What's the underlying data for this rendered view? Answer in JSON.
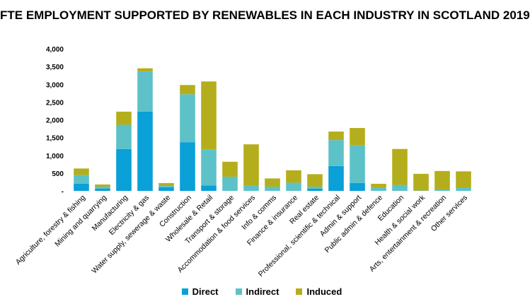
{
  "chart_data": {
    "type": "bar",
    "stacked": true,
    "title": "FTE EMPLOYMENT SUPPORTED BY RENEWABLES IN EACH INDUSTRY IN SCOTLAND 2019",
    "xlabel": "",
    "ylabel": "",
    "ylim": [
      0,
      4000
    ],
    "yticks": [
      0,
      500,
      1000,
      1500,
      2000,
      2500,
      3000,
      3500,
      4000
    ],
    "ytick_labels": [
      "-",
      "500",
      "1,000",
      "1,500",
      "2,000",
      "2,500",
      "3,000",
      "3,500",
      "4,000"
    ],
    "grid": false,
    "legend_position": "bottom",
    "categories": [
      "Agriculture, forestry & fishing",
      "Mining and quarrying",
      "Manufacturing",
      "Electricity & gas",
      "Water supply, sewerage & waste",
      "Construction",
      "Wholesale & Retail",
      "Transport & storage",
      "Accommodation & food services",
      "Info & comms",
      "Finance & insurance",
      "Real estate",
      "Professional, scientific & technical",
      "Admin & support",
      "Public admin & defence",
      "Education",
      "Health & social work",
      "Arts, entertainment & recreation",
      "Other services"
    ],
    "series": [
      {
        "name": "Direct",
        "color": "#0aa0d8",
        "values": [
          200,
          60,
          1180,
          2230,
          100,
          1370,
          150,
          0,
          0,
          0,
          0,
          60,
          700,
          220,
          0,
          0,
          0,
          0,
          0
        ]
      },
      {
        "name": "Indirect",
        "color": "#5cc2c8",
        "values": [
          250,
          60,
          680,
          1130,
          40,
          1350,
          1020,
          400,
          150,
          120,
          230,
          60,
          730,
          1060,
          100,
          170,
          10,
          40,
          90
        ]
      },
      {
        "name": "Induced",
        "color": "#b5ae1c",
        "values": [
          180,
          60,
          370,
          90,
          80,
          260,
          1910,
          420,
          1160,
          230,
          350,
          350,
          240,
          490,
          100,
          1010,
          470,
          520,
          460
        ]
      }
    ]
  }
}
